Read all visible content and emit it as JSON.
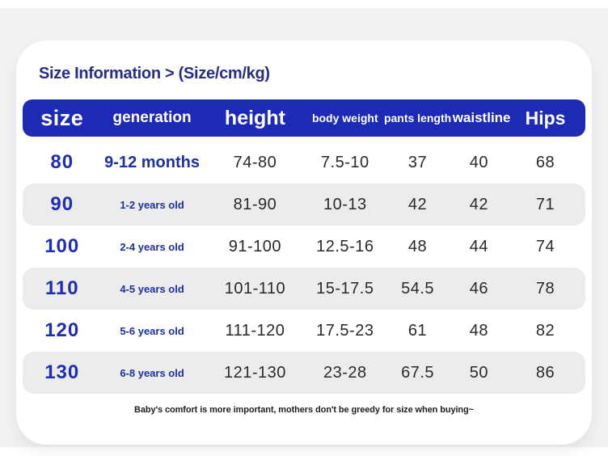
{
  "title": "Size Information > (Size/cm/kg)",
  "colors": {
    "page_bg": "#f2f2f3",
    "card_bg": "#ffffff",
    "header_bar": "#1c2ab5",
    "title_text": "#282e85",
    "size_text": "#1d2eb4",
    "generation_text": "#20309f",
    "value_text": "#2a2a2e",
    "alt_row": "#ececec"
  },
  "table": {
    "columns": [
      {
        "key": "size",
        "label": "size"
      },
      {
        "key": "generation",
        "label": "generation"
      },
      {
        "key": "height",
        "label": "height"
      },
      {
        "key": "body_weight",
        "label": "body weight"
      },
      {
        "key": "pants_length",
        "label": "pants length"
      },
      {
        "key": "waistline",
        "label": "waistline"
      },
      {
        "key": "hips",
        "label": "Hips"
      }
    ],
    "rows": [
      {
        "size": "80",
        "generation": "9-12 months",
        "height": "74-80",
        "body_weight": "7.5-10",
        "pants_length": "37",
        "waistline": "40",
        "hips": "68"
      },
      {
        "size": "90",
        "generation": "1-2 years old",
        "height": "81-90",
        "body_weight": "10-13",
        "pants_length": "42",
        "waistline": "42",
        "hips": "71"
      },
      {
        "size": "100",
        "generation": "2-4 years old",
        "height": "91-100",
        "body_weight": "12.5-16",
        "pants_length": "48",
        "waistline": "44",
        "hips": "74"
      },
      {
        "size": "110",
        "generation": "4-5 years old",
        "height": "101-110",
        "body_weight": "15-17.5",
        "pants_length": "54.5",
        "waistline": "46",
        "hips": "78"
      },
      {
        "size": "120",
        "generation": "5-6 years old",
        "height": "111-120",
        "body_weight": "17.5-23",
        "pants_length": "61",
        "waistline": "48",
        "hips": "82"
      },
      {
        "size": "130",
        "generation": "6-8 years old",
        "height": "121-130",
        "body_weight": "23-28",
        "pants_length": "67.5",
        "waistline": "50",
        "hips": "86"
      }
    ]
  },
  "footer_note": "Baby's comfort is more important, mothers don't be greedy for size when buying~"
}
